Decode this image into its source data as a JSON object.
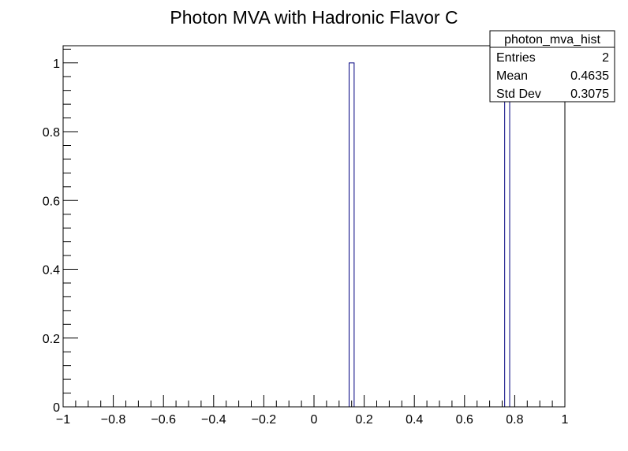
{
  "chart_data": {
    "type": "bar",
    "title": "Photon MVA with Hadronic Flavor C",
    "xlabel": "",
    "ylabel": "",
    "xlim": [
      -1,
      1
    ],
    "ylim": [
      0,
      1.05
    ],
    "bins": 200,
    "x_ticks": [
      -1,
      -0.8,
      -0.6,
      -0.4,
      -0.2,
      0,
      0.2,
      0.4,
      0.6,
      0.8,
      1
    ],
    "x_tick_labels": [
      "−1",
      "−0.8",
      "−0.6",
      "−0.4",
      "−0.2",
      "0",
      "0.2",
      "0.4",
      "0.6",
      "0.8",
      "1"
    ],
    "y_ticks": [
      0,
      0.2,
      0.4,
      0.6,
      0.8,
      1
    ],
    "y_tick_labels": [
      "0",
      "0.2",
      "0.4",
      "0.6",
      "0.8",
      "1"
    ],
    "bars": [
      {
        "x_low": 0.14,
        "x_high": 0.16,
        "value": 1
      },
      {
        "x_low": 0.76,
        "x_high": 0.78,
        "value": 1
      }
    ],
    "line_color": "#000080",
    "grid": false,
    "legend": "none",
    "stats_box": {
      "name": "photon_mva_hist",
      "placement": "top-right",
      "rows": [
        {
          "label": "Entries",
          "value": "2"
        },
        {
          "label": "Mean",
          "value": "0.4635"
        },
        {
          "label": "Std Dev",
          "value": "0.3075"
        }
      ]
    }
  }
}
